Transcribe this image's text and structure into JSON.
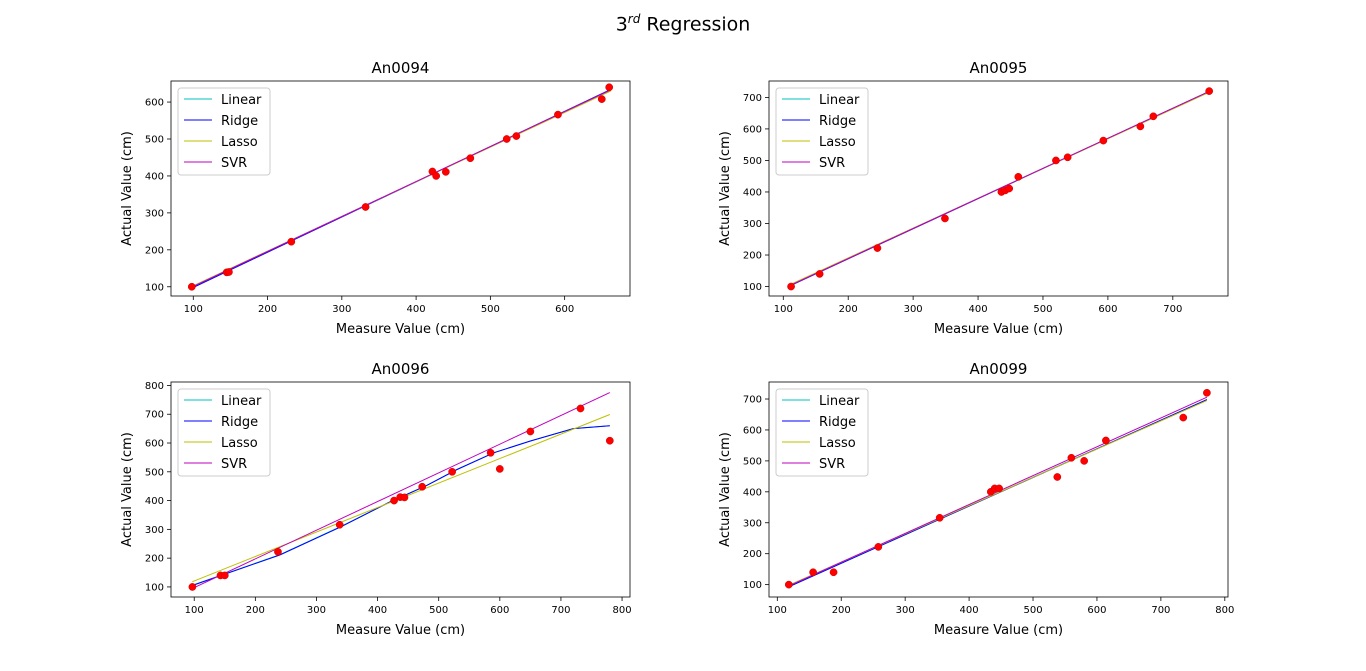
{
  "figure": {
    "suptitle_main": "3",
    "suptitle_sup": "rd",
    "suptitle_rest": " Regression"
  },
  "colors": {
    "Linear": "#00bfbf",
    "Ridge": "#0000ff",
    "Lasso": "#bfbf00",
    "SVR": "#bf00bf",
    "points": "#ff0000",
    "points_edge": "#cc0000"
  },
  "chart_data": [
    {
      "type": "scatter",
      "title": "An0094",
      "xlabel": "Measure Value (cm)",
      "ylabel": "Actual Value (cm)",
      "xlim": [
        70,
        688
      ],
      "ylim": [
        75,
        657
      ],
      "xticks": [
        100,
        200,
        300,
        400,
        500,
        600
      ],
      "yticks": [
        100,
        200,
        300,
        400,
        500,
        600
      ],
      "grid": false,
      "legend_position": "upper-left",
      "points": {
        "x": [
          98,
          145,
          148,
          232,
          332,
          422,
          427,
          440,
          473,
          522,
          535,
          591,
          650,
          660
        ],
        "y": [
          100,
          139,
          140,
          222,
          316,
          412,
          400,
          411,
          448,
          500,
          508,
          566,
          608,
          640
        ]
      },
      "series": [
        {
          "name": "Linear",
          "x": [
            98,
            662
          ],
          "y": [
            98,
            632
          ]
        },
        {
          "name": "Ridge",
          "x": [
            98,
            662
          ],
          "y": [
            96,
            634
          ]
        },
        {
          "name": "Lasso",
          "x": [
            98,
            662
          ],
          "y": [
            101,
            630
          ]
        },
        {
          "name": "SVR",
          "x": [
            98,
            662
          ],
          "y": [
            99,
            633
          ]
        }
      ]
    },
    {
      "type": "scatter",
      "title": "An0095",
      "xlabel": "Measure Value (cm)",
      "ylabel": "Actual Value (cm)",
      "xlim": [
        78,
        785
      ],
      "ylim": [
        70,
        752
      ],
      "xticks": [
        100,
        200,
        300,
        400,
        500,
        600,
        700
      ],
      "yticks": [
        100,
        200,
        300,
        400,
        500,
        600,
        700
      ],
      "grid": false,
      "legend_position": "upper-left",
      "points": {
        "x": [
          112,
          156,
          245,
          349,
          436,
          442,
          448,
          462,
          520,
          538,
          593,
          650,
          670,
          756
        ],
        "y": [
          100,
          140,
          222,
          316,
          400,
          405,
          411,
          448,
          500,
          510,
          563,
          608,
          640,
          720
        ]
      },
      "series": [
        {
          "name": "Linear",
          "x": [
            110,
            756
          ],
          "y": [
            103,
            718
          ]
        },
        {
          "name": "Ridge",
          "x": [
            110,
            756
          ],
          "y": [
            102,
            719
          ]
        },
        {
          "name": "Lasso",
          "x": [
            110,
            756
          ],
          "y": [
            106,
            716
          ]
        },
        {
          "name": "SVR",
          "x": [
            110,
            756
          ],
          "y": [
            103,
            719
          ]
        }
      ]
    },
    {
      "type": "scatter",
      "title": "An0096",
      "xlabel": "Measure Value (cm)",
      "ylabel": "Actual Value (cm)",
      "xlim": [
        62,
        813
      ],
      "ylim": [
        65,
        812
      ],
      "xticks": [
        100,
        200,
        300,
        400,
        500,
        600,
        700,
        800
      ],
      "yticks": [
        100,
        200,
        300,
        400,
        500,
        600,
        700,
        800
      ],
      "grid": false,
      "legend_position": "upper-left",
      "points": {
        "x": [
          97,
          143,
          150,
          237,
          338,
          427,
          437,
          444,
          473,
          522,
          585,
          600,
          650,
          732,
          780
        ],
        "y": [
          100,
          140,
          140,
          222,
          316,
          400,
          412,
          411,
          448,
          500,
          566,
          510,
          640,
          720,
          608
        ]
      },
      "series": [
        {
          "name": "Linear",
          "x": [
            97,
            240,
            340,
            420,
            480,
            530,
            590,
            650,
            720,
            780
          ],
          "y": [
            106,
            212,
            310,
            395,
            452,
            508,
            566,
            607,
            650,
            660
          ]
        },
        {
          "name": "Ridge",
          "x": [
            97,
            240,
            340,
            420,
            480,
            530,
            590,
            650,
            720,
            780
          ],
          "y": [
            105,
            211,
            309,
            395,
            452,
            508,
            566,
            607,
            650,
            660
          ]
        },
        {
          "name": "Lasso",
          "x": [
            97,
            780
          ],
          "y": [
            118,
            699
          ]
        },
        {
          "name": "SVR",
          "x": [
            97,
            780
          ],
          "y": [
            95,
            775
          ]
        }
      ]
    },
    {
      "type": "scatter",
      "title": "An0099",
      "xlabel": "Measure Value (cm)",
      "ylabel": "Actual Value (cm)",
      "xlim": [
        87,
        805
      ],
      "ylim": [
        60,
        755
      ],
      "xticks": [
        100,
        200,
        300,
        400,
        500,
        600,
        700,
        800
      ],
      "yticks": [
        100,
        200,
        300,
        400,
        500,
        600,
        700
      ],
      "grid": false,
      "legend_position": "upper-left",
      "points": {
        "x": [
          118,
          156,
          188,
          258,
          354,
          434,
          440,
          447,
          538,
          560,
          580,
          614,
          735,
          772
        ],
        "y": [
          100,
          140,
          140,
          222,
          316,
          400,
          411,
          411,
          448,
          510,
          500,
          566,
          640,
          720
        ]
      },
      "series": [
        {
          "name": "Linear",
          "x": [
            118,
            772
          ],
          "y": [
            93,
            698
          ]
        },
        {
          "name": "Ridge",
          "x": [
            118,
            772
          ],
          "y": [
            93,
            698
          ]
        },
        {
          "name": "Lasso",
          "x": [
            118,
            772
          ],
          "y": [
            98,
            695
          ]
        },
        {
          "name": "SVR",
          "x": [
            118,
            772
          ],
          "y": [
            96,
            706
          ]
        }
      ]
    }
  ]
}
